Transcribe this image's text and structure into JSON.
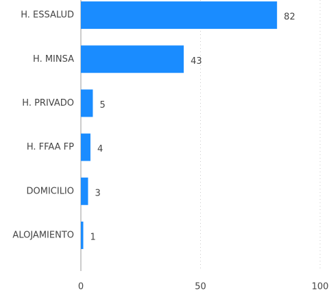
{
  "chart_data": {
    "type": "bar",
    "orientation": "horizontal",
    "categories": [
      "H. ESSALUD",
      "H. MINSA",
      "H. PRIVADO",
      "H. FFAA FP",
      "DOMICILIO",
      "ALOJAMIENTO"
    ],
    "values": [
      82,
      43,
      5,
      4,
      3,
      1
    ],
    "color": "#1a8cff",
    "xlim": [
      0,
      100
    ],
    "xticks": [
      0,
      50,
      100
    ],
    "grid": true
  }
}
